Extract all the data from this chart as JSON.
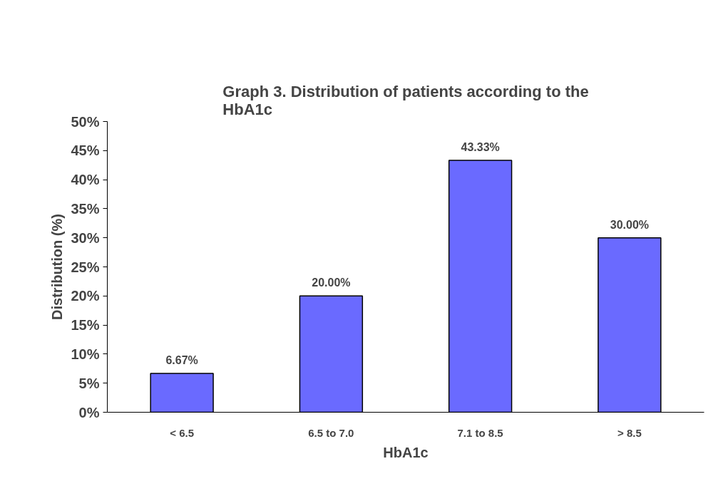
{
  "chart_data": {
    "type": "bar",
    "title": "Graph 3. Distribution of patients according to the\nHbA1c",
    "xlabel": "HbA1c",
    "ylabel": "Distribution (%)",
    "categories": [
      "< 6.5",
      "6.5 to 7.0",
      "7.1 to 8.5",
      "> 8.5"
    ],
    "values": [
      6.67,
      20.0,
      43.33,
      30.0
    ],
    "value_labels": [
      "6.67%",
      "20.00%",
      "43.33%",
      "30.00%"
    ],
    "color": "#6a6aff",
    "ylim": [
      0,
      50
    ],
    "yticks": [
      {
        "value": 0,
        "label": "0%"
      },
      {
        "value": 5,
        "label": "5%"
      },
      {
        "value": 10,
        "label": "10%"
      },
      {
        "value": 15,
        "label": "15%"
      },
      {
        "value": 20,
        "label": "20%"
      },
      {
        "value": 25,
        "label": "25%"
      },
      {
        "value": 30,
        "label": "30%"
      },
      {
        "value": 35,
        "label": "35%"
      },
      {
        "value": 40,
        "label": "40%"
      },
      {
        "value": 45,
        "label": "45%"
      },
      {
        "value": 50,
        "label": "50%"
      }
    ],
    "grid": false
  }
}
